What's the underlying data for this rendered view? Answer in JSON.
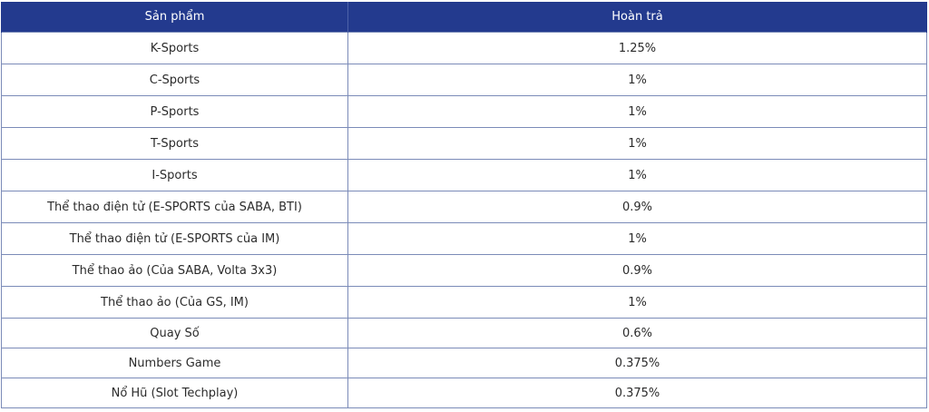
{
  "table": {
    "headers": [
      "Sản phẩm",
      "Hoàn trả"
    ],
    "rows": [
      [
        "K-Sports",
        "1.25%"
      ],
      [
        "C-Sports",
        "1%"
      ],
      [
        "P-Sports",
        "1%"
      ],
      [
        "T-Sports",
        "1%"
      ],
      [
        "I-Sports",
        "1%"
      ],
      [
        "Thể thao điện tử (E-SPORTS của SABA, BTI)",
        "0.9%"
      ],
      [
        "Thể thao điện tử (E-SPORTS của IM)",
        "1%"
      ],
      [
        "Thể thao ảo (Của SABA, Volta 3x3)",
        "0.9%"
      ],
      [
        "Thể thao ảo (Của GS, IM)",
        "1%"
      ],
      [
        "Quay Số",
        "0.6%"
      ],
      [
        "Numbers Game",
        "0.375%"
      ],
      [
        "Nổ Hũ (Slot Techplay)",
        "0.375%"
      ]
    ]
  },
  "colors": {
    "header_bg": "#233a8e",
    "header_text": "#ffffff",
    "border": "#7b8bb8"
  }
}
